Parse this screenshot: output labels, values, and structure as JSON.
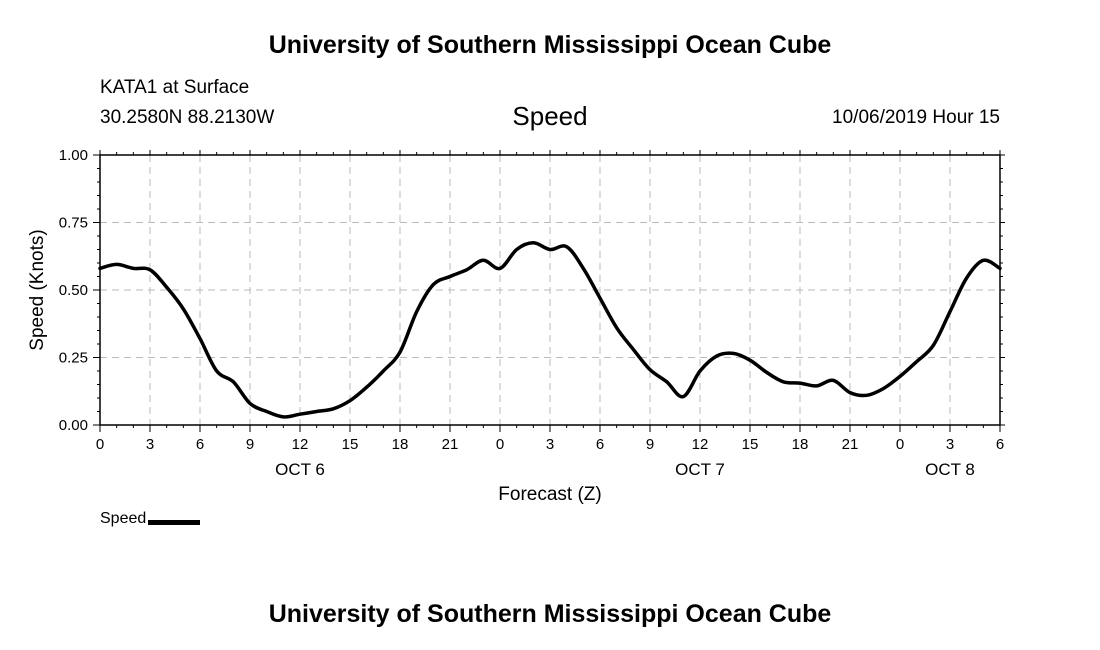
{
  "header": {
    "title": "University of Southern Mississippi Ocean Cube",
    "station": "KATA1 at Surface",
    "coords": "30.2580N 88.2130W",
    "chart_title": "Speed",
    "datetime": "10/06/2019 Hour 15",
    "footer_title": "University of Southern Mississippi Ocean Cube"
  },
  "chart_data": {
    "type": "line",
    "title": "Speed",
    "xlabel": "Forecast (Z)",
    "ylabel": "Speed (Knots)",
    "ylim": [
      0,
      1
    ],
    "xlim": [
      0,
      54
    ],
    "grid": true,
    "legend_placement": "bottom-left",
    "y_ticks": [
      {
        "value": 0,
        "label": "0.00"
      },
      {
        "value": 0.25,
        "label": "0.25"
      },
      {
        "value": 0.5,
        "label": "0.50"
      },
      {
        "value": 0.75,
        "label": "0.75"
      },
      {
        "value": 1,
        "label": "1.00"
      }
    ],
    "x_ticks": [
      "0",
      "3",
      "6",
      "9",
      "12",
      "15",
      "18",
      "21",
      "0",
      "3",
      "6",
      "9",
      "12",
      "15",
      "18",
      "21",
      "0",
      "3",
      "6"
    ],
    "day_labels": [
      {
        "label": "OCT 6",
        "x": 12
      },
      {
        "label": "OCT 7",
        "x": 36
      },
      {
        "label": "OCT 8",
        "x": 51
      }
    ],
    "series": [
      {
        "name": "Speed",
        "color": "#000000",
        "x": [
          0,
          1,
          2,
          3,
          4,
          5,
          6,
          7,
          8,
          9,
          10,
          11,
          12,
          13,
          14,
          15,
          16,
          17,
          18,
          19,
          20,
          21,
          22,
          23,
          24,
          25,
          26,
          27,
          28,
          29,
          30,
          31,
          32,
          33,
          34,
          35,
          36,
          37,
          38,
          39,
          40,
          41,
          42,
          43,
          44,
          45,
          46,
          47,
          48,
          49,
          50,
          51,
          52,
          53,
          54
        ],
        "values": [
          0.58,
          0.595,
          0.58,
          0.575,
          0.51,
          0.43,
          0.32,
          0.2,
          0.16,
          0.08,
          0.05,
          0.03,
          0.04,
          0.05,
          0.06,
          0.09,
          0.14,
          0.2,
          0.27,
          0.42,
          0.52,
          0.55,
          0.575,
          0.61,
          0.58,
          0.65,
          0.675,
          0.65,
          0.66,
          0.58,
          0.47,
          0.36,
          0.28,
          0.205,
          0.16,
          0.105,
          0.2,
          0.255,
          0.265,
          0.24,
          0.195,
          0.16,
          0.155,
          0.145,
          0.165,
          0.12,
          0.11,
          0.135,
          0.18,
          0.235,
          0.295,
          0.42,
          0.545,
          0.61,
          0.58
        ]
      }
    ]
  }
}
